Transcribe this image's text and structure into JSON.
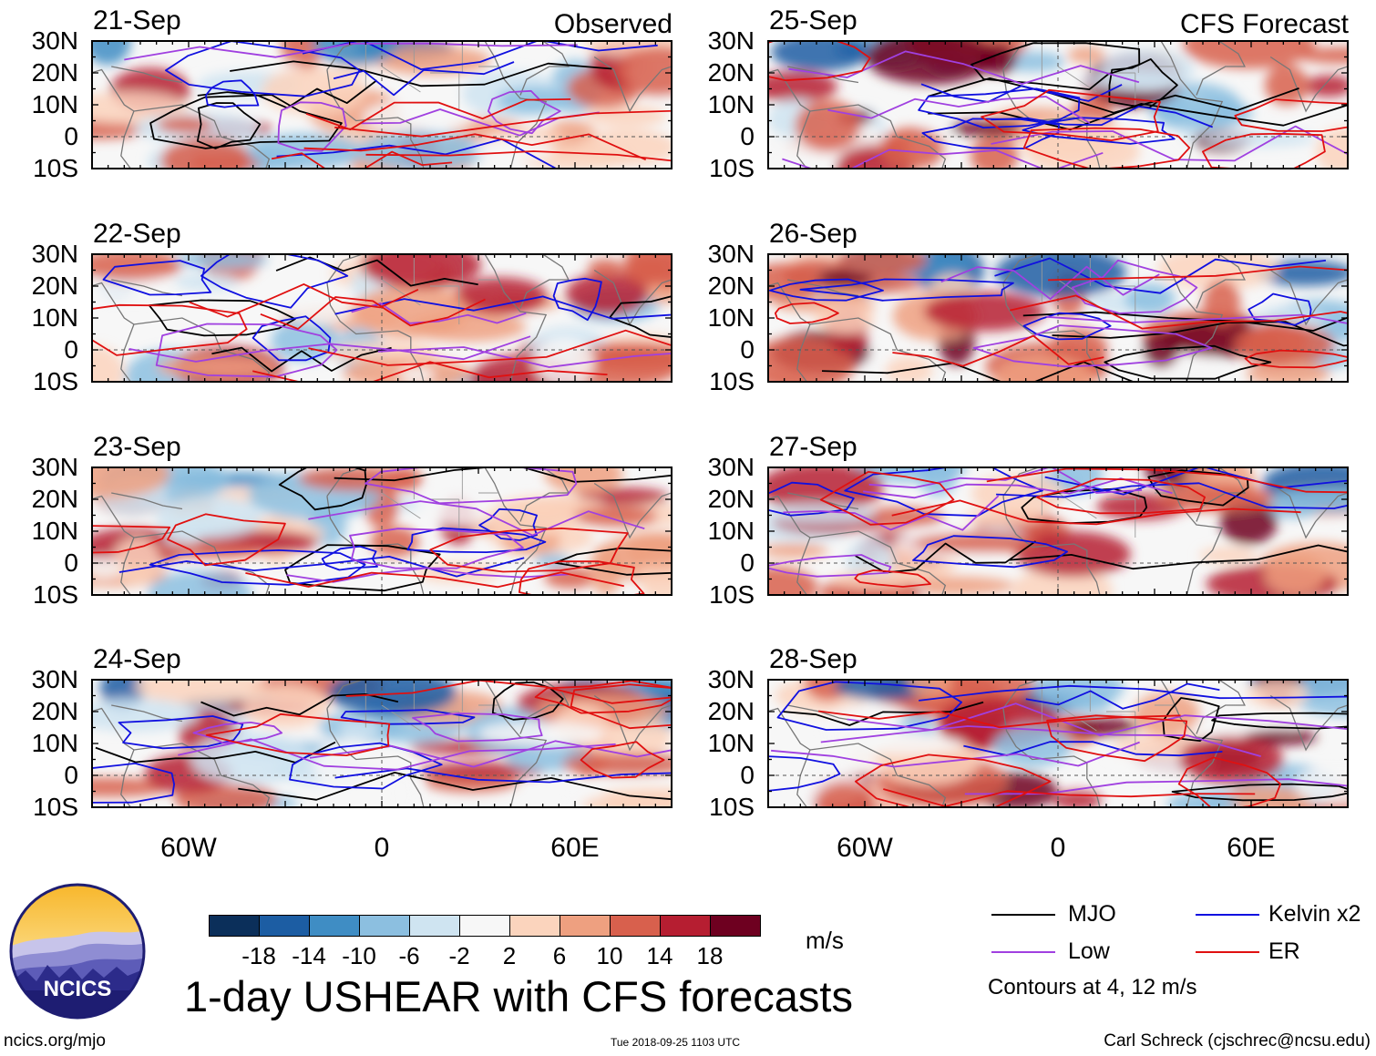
{
  "chart_data": {
    "type": "heatmap",
    "title": "1-day USHEAR with CFS forecasts",
    "variable": "USHEAR",
    "units": "m/s",
    "columns": [
      {
        "heading": "Observed",
        "panels": [
          "21-Sep",
          "22-Sep",
          "23-Sep",
          "24-Sep"
        ]
      },
      {
        "heading": "CFS Forecast",
        "panels": [
          "25-Sep",
          "26-Sep",
          "27-Sep",
          "28-Sep"
        ]
      }
    ],
    "lat_range": [
      -10,
      30
    ],
    "lon_range": [
      -90,
      90
    ],
    "lat_ticks": [
      30,
      20,
      10,
      0,
      -10
    ],
    "lat_tick_labels": [
      "30N",
      "20N",
      "10N",
      "0",
      "10S"
    ],
    "lon_ticks": [
      -60,
      0,
      60
    ],
    "lon_tick_labels": [
      "60W",
      "0",
      "60E"
    ],
    "colorbar": {
      "levels": [
        -18,
        -14,
        -10,
        -6,
        -2,
        2,
        6,
        10,
        14,
        18
      ],
      "labels": [
        "-18",
        "-14",
        "-10",
        "-6",
        "-2",
        "2",
        "6",
        "10",
        "14",
        "18"
      ],
      "colors": [
        "#0b2f5a",
        "#1c5da3",
        "#3f8dc4",
        "#8cbfe0",
        "#cfe4f1",
        "#f7f7f7",
        "#fbd4bd",
        "#eea080",
        "#d8604d",
        "#b61e31",
        "#6e0020"
      ],
      "units_label": "m/s"
    },
    "contour_note": "Contours at 4, 12 m/s",
    "legend": [
      {
        "label": "MJO",
        "color": "#000000"
      },
      {
        "label": "Kelvin x2",
        "color": "#1010e0"
      },
      {
        "label": "Low",
        "color": "#a040e0"
      },
      {
        "label": "ER",
        "color": "#e01010"
      }
    ]
  },
  "logo": {
    "text": "NCICS"
  },
  "footer": {
    "url": "ncics.org/mjo",
    "timestamp": "Tue 2018-09-25 1103 UTC",
    "credit": "Carl Schreck (cjschrec@ncsu.edu)"
  }
}
